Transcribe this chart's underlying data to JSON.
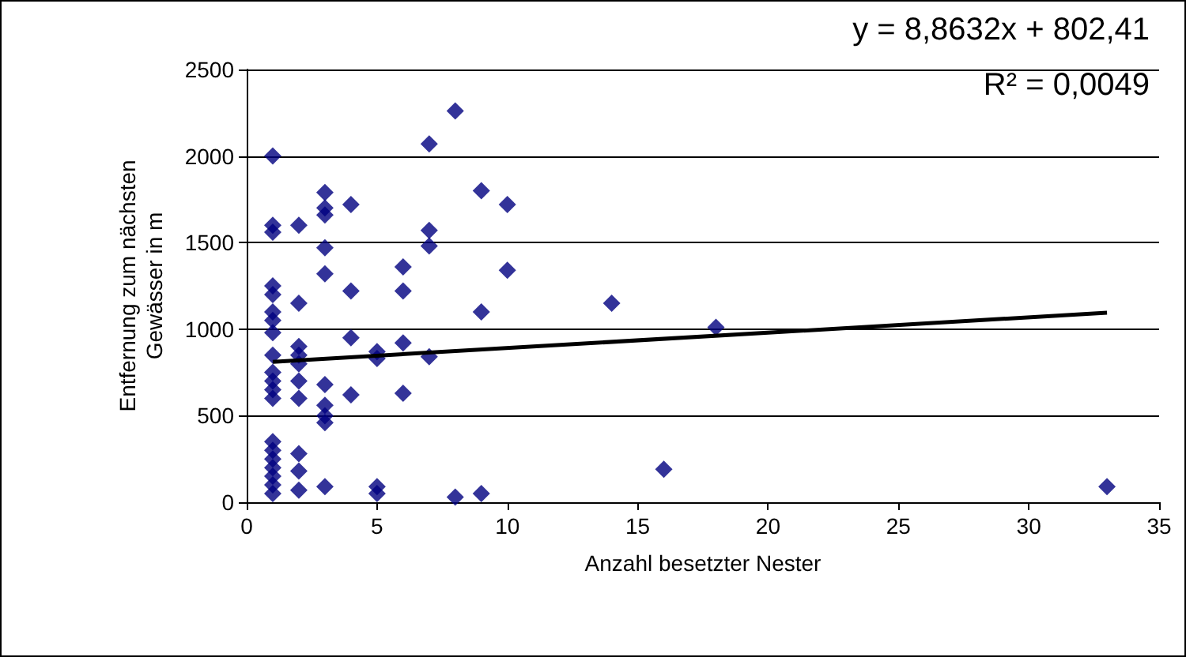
{
  "chart_data": {
    "type": "scatter",
    "xlabel": "Anzahl besetzter Nester",
    "ylabel": "Entfernung zum nächsten\nGewässer in m",
    "annotations": [
      "y = 8,8632x + 802,41",
      "R² = 0,0049"
    ],
    "xlim": [
      0,
      35
    ],
    "xticks": [
      0,
      5,
      10,
      15,
      20,
      25,
      30,
      35
    ],
    "ylim": [
      0,
      2500
    ],
    "yticks": [
      0,
      500,
      1000,
      1500,
      2000,
      2500
    ],
    "grid": "y",
    "marker": "diamond",
    "series": [
      {
        "color": "#000080",
        "x": [
          1,
          1,
          1,
          1,
          1,
          1,
          1,
          1,
          1,
          1,
          1,
          1,
          1,
          1,
          1,
          1,
          1,
          1,
          1,
          1,
          2,
          2,
          2,
          2,
          2,
          2,
          2,
          2,
          2,
          2,
          3,
          3,
          3,
          3,
          3,
          3,
          3,
          3,
          3,
          3,
          4,
          4,
          4,
          4,
          5,
          5,
          5,
          5,
          6,
          6,
          6,
          6,
          7,
          7,
          7,
          7,
          8,
          8,
          9,
          9,
          9,
          10,
          10,
          14,
          16,
          18,
          33
        ],
        "values": [
          2000,
          1600,
          1560,
          1250,
          1200,
          1100,
          1050,
          980,
          850,
          750,
          700,
          650,
          600,
          350,
          300,
          250,
          200,
          150,
          100,
          50,
          1600,
          1150,
          900,
          850,
          800,
          700,
          600,
          280,
          180,
          70,
          1790,
          1700,
          1660,
          1470,
          1320,
          680,
          560,
          500,
          460,
          90,
          1720,
          1220,
          950,
          620,
          870,
          830,
          90,
          50,
          1360,
          1220,
          920,
          630,
          2070,
          1570,
          1480,
          840,
          2260,
          30,
          1800,
          1100,
          50,
          1720,
          1340,
          1150,
          190,
          1010,
          90
        ]
      },
      {
        "type": "line",
        "color": "#000000",
        "marker": "none",
        "x": [
          1,
          33
        ],
        "values": [
          811,
          1095
        ]
      }
    ]
  }
}
